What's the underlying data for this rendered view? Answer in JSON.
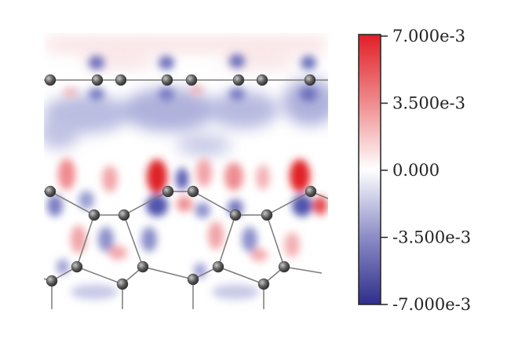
{
  "colorbar": {
    "max": 0.007,
    "min": -0.007,
    "colors": [
      "#3a3a9a",
      "#ffffff",
      "#e5262a"
    ],
    "ticks": [
      {
        "value": 0.007,
        "label": "7.000e-3"
      },
      {
        "value": 0.0035,
        "label": "3.500e-3"
      },
      {
        "value": 0.0,
        "label": "0.000"
      },
      {
        "value": -0.0035,
        "label": "-3.500e-3"
      },
      {
        "value": -0.007,
        "label": "-7.000e-3"
      }
    ]
  },
  "map": {
    "atom_color": "#5a5a5a",
    "bond_color": "#7a7a7a"
  }
}
